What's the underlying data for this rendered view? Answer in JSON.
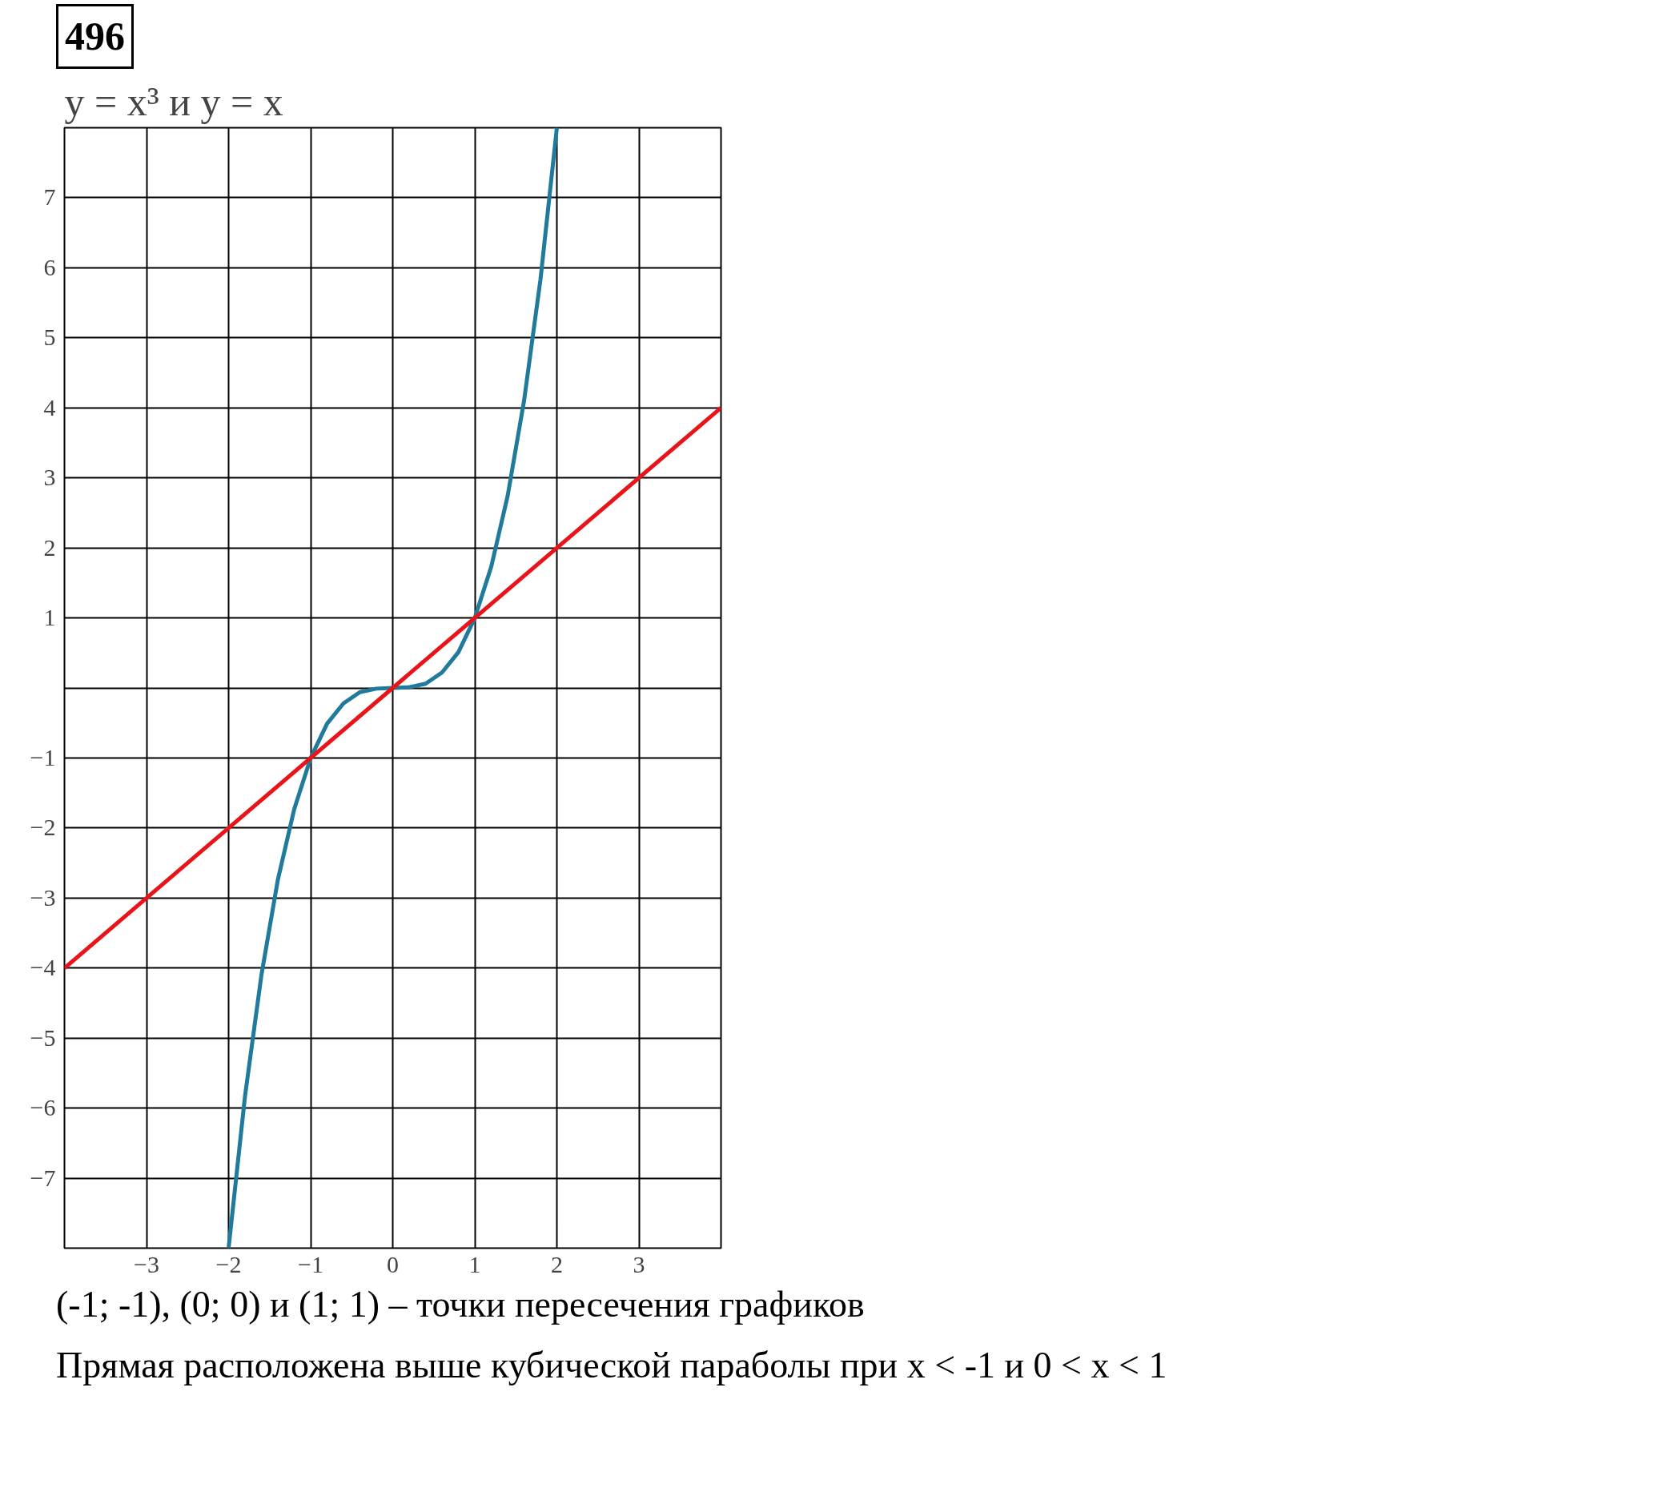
{
  "chart_data": {
    "type": "line",
    "title": "y = x³ и y = x",
    "annotations": [
      "496",
      "(-1; -1), (0; 0) и (1; 1) – точки пересечения графиков",
      "Прямая расположена выше кубической параболы при x < -1 и 0 < x < 1"
    ],
    "series": [
      {
        "color": "#1f7a9c",
        "x": [
          -2,
          -1.8,
          -1.6,
          -1.4,
          -1.2,
          -1,
          -0.8,
          -0.6,
          -0.4,
          -0.2,
          0,
          0.2,
          0.4,
          0.6,
          0.8,
          1,
          1.2,
          1.4,
          1.6,
          1.8,
          2
        ],
        "values": [
          -8,
          -5.83,
          -4.1,
          -2.74,
          -1.73,
          -1,
          -0.51,
          -0.22,
          -0.06,
          -0.01,
          0,
          0.01,
          0.06,
          0.22,
          0.51,
          1,
          1.73,
          2.74,
          4.1,
          5.83,
          8
        ]
      },
      {
        "color": "#e8141a",
        "x": [
          -4,
          4
        ],
        "values": [
          -4,
          4
        ]
      }
    ],
    "xlim": [
      -4,
      4
    ],
    "ylim": [
      -8,
      8
    ],
    "xticks": [
      -3,
      -2,
      -1,
      0,
      1,
      2,
      3
    ],
    "yticks": [
      -7,
      -6,
      -5,
      -4,
      -3,
      -2,
      -1,
      {
        "value": 0,
        "label": null
      },
      1,
      2,
      3,
      4,
      5,
      6,
      7
    ],
    "grid": true,
    "line_style": "solid",
    "marker": "none"
  }
}
